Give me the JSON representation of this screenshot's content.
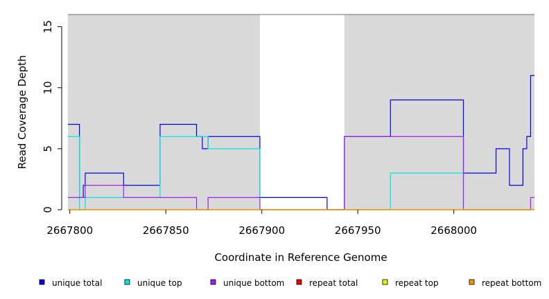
{
  "chart_data": {
    "type": "line",
    "step": true,
    "xlabel": "Coordinate in Reference Genome",
    "ylabel": "Read Coverage Depth",
    "xlim": [
      2667799,
      2668042
    ],
    "ylim": [
      0,
      16
    ],
    "xticks": [
      2667800,
      2667850,
      2667900,
      2667950,
      2668000
    ],
    "xtick_labels": [
      "2667800",
      "2667850",
      "2667900",
      "2667950",
      "2668000"
    ],
    "yticks": [
      0,
      5,
      10,
      15
    ],
    "ytick_labels": [
      "0",
      "5",
      "10",
      "15"
    ],
    "shaded_regions": [
      [
        2667799,
        2667899
      ],
      [
        2667943,
        2668042
      ]
    ],
    "shade_color": "#d9d9d9",
    "legend_position": "bottom",
    "series": [
      {
        "name": "unique total",
        "color": "#0000ee",
        "x": [
          2667799,
          2667805,
          2667807,
          2667808,
          2667828,
          2667847,
          2667866,
          2667869,
          2667872,
          2667899,
          2667934,
          2667943,
          2667967,
          2668005,
          2668022,
          2668029,
          2668036,
          2668038,
          2668040,
          2668042
        ],
        "y": [
          7,
          1,
          2,
          3,
          2,
          7,
          6,
          5,
          6,
          1,
          0,
          6,
          9,
          3,
          5,
          2,
          5,
          6,
          11,
          11
        ]
      },
      {
        "name": "unique top",
        "color": "#00e5e5",
        "x": [
          2667799,
          2667805,
          2667808,
          2667828,
          2667847,
          2667872,
          2667899,
          2667967,
          2668005,
          2668042
        ],
        "y": [
          6,
          0,
          1,
          1,
          6,
          5,
          0,
          3,
          0,
          0
        ]
      },
      {
        "name": "unique bottom",
        "color": "#a020f0",
        "x": [
          2667799,
          2667808,
          2667828,
          2667866,
          2667872,
          2667899,
          2667943,
          2668005,
          2668040,
          2668042
        ],
        "y": [
          1,
          2,
          1,
          0,
          1,
          0,
          6,
          0,
          1,
          1
        ]
      },
      {
        "name": "repeat total",
        "color": "#ee0000",
        "x": [
          2667799,
          2668042
        ],
        "y": [
          0,
          0
        ]
      },
      {
        "name": "repeat top",
        "color": "#eeee00",
        "x": [
          2667799,
          2668042
        ],
        "y": [
          0,
          0
        ]
      },
      {
        "name": "repeat bottom",
        "color": "#ee9a00",
        "x": [
          2667799,
          2668042
        ],
        "y": [
          0,
          0
        ]
      }
    ]
  }
}
